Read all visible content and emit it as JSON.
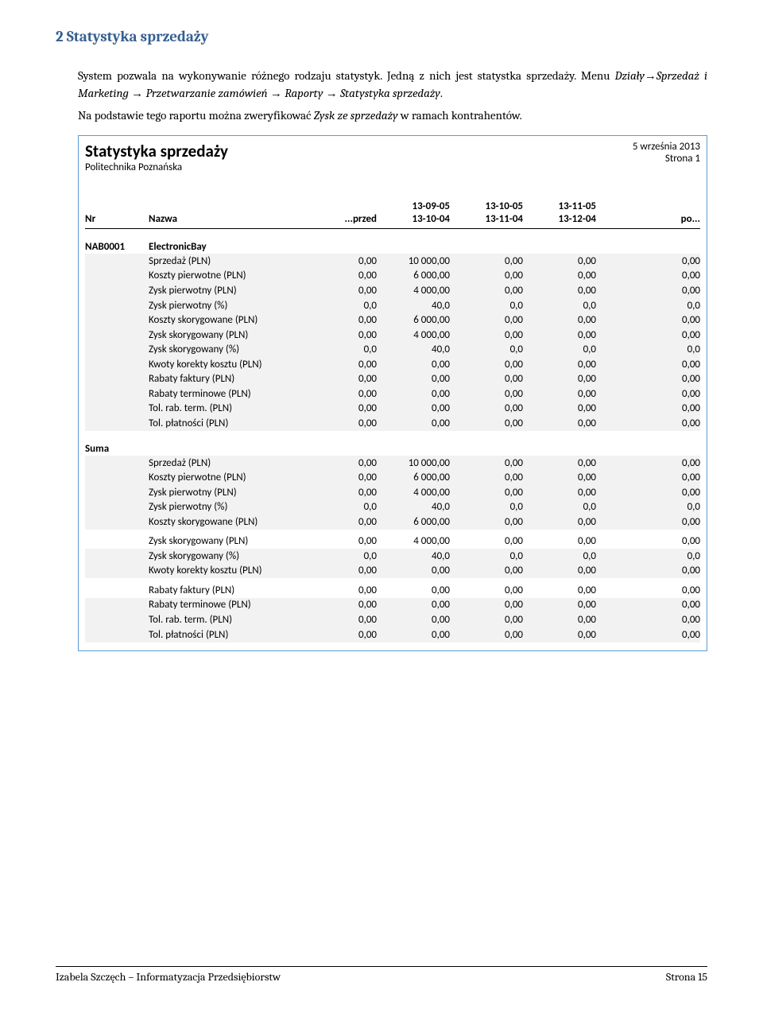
{
  "heading": "2   Statystyka sprzedaży",
  "para1_a": "System pozwala na wykonywanie różnego rodzaju statystyk. Jedną z nich jest statystka sprzedaży. Menu ",
  "para1_b": "Działy",
  "para1_c": "Sprzedaż i Marketing ",
  "para1_d": " Przetwarzanie zamówień ",
  "para1_e": " Raporty ",
  "para1_f": " Statystyka sprzedaży",
  "para1_g": ".",
  "para2_a": "Na podstawie tego raportu można zweryfikować ",
  "para2_b": "Zysk ze sprzedaży",
  "para2_c": " w ramach kontrahentów.",
  "arrow": "→",
  "report": {
    "title": "Statystyka sprzedaży",
    "subtitle": "Politechnika Poznańska",
    "date": "5 września 2013",
    "page": "Strona 1",
    "cols": {
      "nr": "Nr",
      "nazwa": "Nazwa",
      "przed": "...przed",
      "p1a": "13-09-05",
      "p1b": "13-10-04",
      "p2a": "13-10-05",
      "p2b": "13-11-04",
      "p3a": "13-11-05",
      "p3b": "13-12-04",
      "po": "po..."
    },
    "group1": {
      "nr": "NAB0001",
      "name": "ElectronicBay"
    },
    "rows1": [
      {
        "label": "Sprzedaż (PLN)",
        "v": [
          "0,00",
          "10 000,00",
          "0,00",
          "0,00",
          "0,00"
        ],
        "alt": true
      },
      {
        "label": "Koszty pierwotne (PLN)",
        "v": [
          "0,00",
          "6 000,00",
          "0,00",
          "0,00",
          "0,00"
        ],
        "alt": true
      },
      {
        "label": "Zysk pierwotny (PLN)",
        "v": [
          "0,00",
          "4 000,00",
          "0,00",
          "0,00",
          "0,00"
        ],
        "alt": true
      },
      {
        "label": "Zysk pierwotny (%)",
        "v": [
          "0,0",
          "40,0",
          "0,0",
          "0,0",
          "0,0"
        ],
        "alt": true
      },
      {
        "label": "Koszty skorygowane (PLN)",
        "v": [
          "0,00",
          "6 000,00",
          "0,00",
          "0,00",
          "0,00"
        ],
        "alt": true
      },
      {
        "label": "Zysk skorygowany (PLN)",
        "v": [
          "0,00",
          "4 000,00",
          "0,00",
          "0,00",
          "0,00"
        ],
        "alt": true
      },
      {
        "label": "Zysk skorygowany (%)",
        "v": [
          "0,0",
          "40,0",
          "0,0",
          "0,0",
          "0,0"
        ],
        "alt": true
      },
      {
        "label": "Kwoty korekty kosztu (PLN)",
        "v": [
          "0,00",
          "0,00",
          "0,00",
          "0,00",
          "0,00"
        ],
        "alt": true
      },
      {
        "label": "Rabaty faktury (PLN)",
        "v": [
          "0,00",
          "0,00",
          "0,00",
          "0,00",
          "0,00"
        ],
        "alt": true
      },
      {
        "label": "Rabaty terminowe (PLN)",
        "v": [
          "0,00",
          "0,00",
          "0,00",
          "0,00",
          "0,00"
        ],
        "alt": true
      },
      {
        "label": "Tol. rab. term. (PLN)",
        "v": [
          "0,00",
          "0,00",
          "0,00",
          "0,00",
          "0,00"
        ],
        "alt": true
      },
      {
        "label": "Tol. płatności (PLN)",
        "v": [
          "0,00",
          "0,00",
          "0,00",
          "0,00",
          "0,00"
        ],
        "alt": true
      }
    ],
    "group2": {
      "nr": "Suma",
      "name": ""
    },
    "rows2": [
      {
        "label": "Sprzedaż (PLN)",
        "v": [
          "0,00",
          "10 000,00",
          "0,00",
          "0,00",
          "0,00"
        ],
        "alt": true
      },
      {
        "label": "Koszty pierwotne (PLN)",
        "v": [
          "0,00",
          "6 000,00",
          "0,00",
          "0,00",
          "0,00"
        ],
        "alt": true
      },
      {
        "label": "Zysk pierwotny (PLN)",
        "v": [
          "0,00",
          "4 000,00",
          "0,00",
          "0,00",
          "0,00"
        ],
        "alt": true
      },
      {
        "label": "Zysk pierwotny (%)",
        "v": [
          "0,0",
          "40,0",
          "0,0",
          "0,0",
          "0,0"
        ],
        "alt": true
      },
      {
        "label": "Koszty skorygowane (PLN)",
        "v": [
          "0,00",
          "6 000,00",
          "0,00",
          "0,00",
          "0,00"
        ],
        "alt": true
      },
      {
        "label": "Zysk skorygowany (PLN)",
        "v": [
          "0,00",
          "4 000,00",
          "0,00",
          "0,00",
          "0,00"
        ],
        "alt": false,
        "gap": true
      },
      {
        "label": "Zysk skorygowany (%)",
        "v": [
          "0,0",
          "40,0",
          "0,0",
          "0,0",
          "0,0"
        ],
        "alt": true
      },
      {
        "label": "Kwoty korekty kosztu (PLN)",
        "v": [
          "0,00",
          "0,00",
          "0,00",
          "0,00",
          "0,00"
        ],
        "alt": true
      },
      {
        "label": "Rabaty faktury (PLN)",
        "v": [
          "0,00",
          "0,00",
          "0,00",
          "0,00",
          "0,00"
        ],
        "alt": false,
        "gap": true
      },
      {
        "label": "Rabaty terminowe (PLN)",
        "v": [
          "0,00",
          "0,00",
          "0,00",
          "0,00",
          "0,00"
        ],
        "alt": true
      },
      {
        "label": "Tol. rab. term. (PLN)",
        "v": [
          "0,00",
          "0,00",
          "0,00",
          "0,00",
          "0,00"
        ],
        "alt": true
      },
      {
        "label": "Tol. płatności (PLN)",
        "v": [
          "0,00",
          "0,00",
          "0,00",
          "0,00",
          "0,00"
        ],
        "alt": true
      }
    ]
  },
  "footer": {
    "left": "Izabela Szczęch – Informatyzacja Przedsiębiorstw",
    "right": "Strona 15"
  }
}
